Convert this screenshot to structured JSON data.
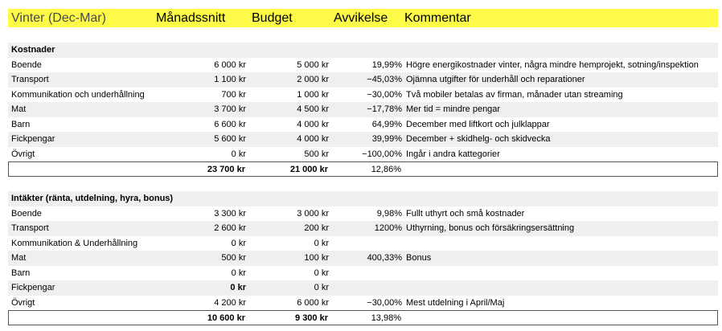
{
  "header": {
    "title": "Vinter (Dec-Mar)",
    "columns": [
      "Månadssnitt",
      "Budget",
      "Avvikelse",
      "Kommentar"
    ]
  },
  "colors": {
    "header_bg": "#fdfb47",
    "row_alt": "#efefef"
  },
  "sections": [
    {
      "title": "Kostnader",
      "rows": [
        {
          "label": "Boende",
          "avg": "6 000 kr",
          "budget": "5 000 kr",
          "dev": "19,99%",
          "comment": "Högre energikostnader vinter, några mindre hemprojekt, sotning/inspektion"
        },
        {
          "label": "Transport",
          "avg": "1 100 kr",
          "budget": "2 000 kr",
          "dev": "−45,03%",
          "comment": "Ojämna utgifter för underhåll och reparationer"
        },
        {
          "label": "Kommunikation och underhållning",
          "avg": "700 kr",
          "budget": "1 000 kr",
          "dev": "−30,00%",
          "comment": "Två mobiler betalas av firman, månader utan streaming"
        },
        {
          "label": "Mat",
          "avg": "3 700 kr",
          "budget": "4 500 kr",
          "dev": "−17,78%",
          "comment": "Mer tid = mindre pengar"
        },
        {
          "label": "Barn",
          "avg": "6 600 kr",
          "budget": "4 000 kr",
          "dev": "64,99%",
          "comment": "December med liftkort och julklappar"
        },
        {
          "label": "Fickpengar",
          "avg": "5 600 kr",
          "budget": "4 000 kr",
          "dev": "39,99%",
          "comment": "December + skidhelg- och skidvecka"
        },
        {
          "label": "Övrigt",
          "avg": "0 kr",
          "budget": "500 kr",
          "dev": "−100,00%",
          "comment": "Ingår i andra kattegorier"
        }
      ],
      "total": {
        "avg": "23 700 kr",
        "budget": "21 000 kr",
        "dev": "12,86%"
      }
    },
    {
      "title": "Intäkter (ränta, utdelning, hyra, bonus)",
      "rows": [
        {
          "label": "Boende",
          "avg": "3 300 kr",
          "budget": "3 000 kr",
          "dev": "9,98%",
          "comment": "Fullt uthyrt och små kostnader"
        },
        {
          "label": "Transport",
          "avg": "2 600 kr",
          "budget": "200 kr",
          "dev": "1200%",
          "comment": "Uthyrning, bonus och försäkringsersättning"
        },
        {
          "label": "Kommunikation & Underhållning",
          "avg": "0 kr",
          "budget": "0 kr",
          "dev": "",
          "comment": ""
        },
        {
          "label": "Mat",
          "avg": "500 kr",
          "budget": "100 kr",
          "dev": "400,33%",
          "comment": "Bonus"
        },
        {
          "label": "Barn",
          "avg": "0 kr",
          "budget": "0 kr",
          "dev": "",
          "comment": ""
        },
        {
          "label": "Fickpengar",
          "avg": "0 kr",
          "budget": "0 kr",
          "dev": "",
          "comment": "",
          "avg_bold": true
        },
        {
          "label": "Övrigt",
          "avg": "4 200 kr",
          "budget": "6 000 kr",
          "dev": "−30,00%",
          "comment": "Mest utdelning i April/Maj"
        }
      ],
      "total": {
        "avg": "10 600 kr",
        "budget": "9 300 kr",
        "dev": "13,98%"
      }
    }
  ]
}
